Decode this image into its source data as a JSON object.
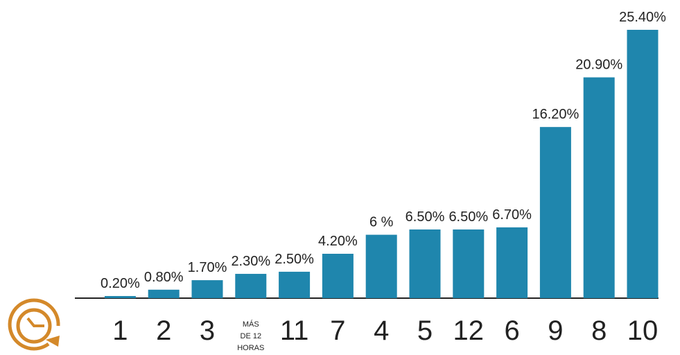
{
  "chart_data": {
    "type": "bar",
    "categories": [
      "1",
      "2",
      "3",
      [
        "MÁS",
        "DE 12",
        "HORAS"
      ],
      "11",
      "7",
      "4",
      "5",
      "12",
      "6",
      "9",
      "8",
      "10"
    ],
    "values": [
      0.2,
      0.8,
      1.7,
      2.3,
      2.5,
      4.2,
      6,
      6.5,
      6.5,
      6.7,
      16.2,
      20.9,
      25.4
    ],
    "value_labels": [
      "0.20%",
      "0.80%",
      "1.70%",
      "2.30%",
      "2.50%",
      "4.20%",
      "6 %",
      "6.50%",
      "6.50%",
      "6.70%",
      "16.20%",
      "20.90%",
      "25.40%"
    ],
    "color": "#1f86ad"
  }
}
